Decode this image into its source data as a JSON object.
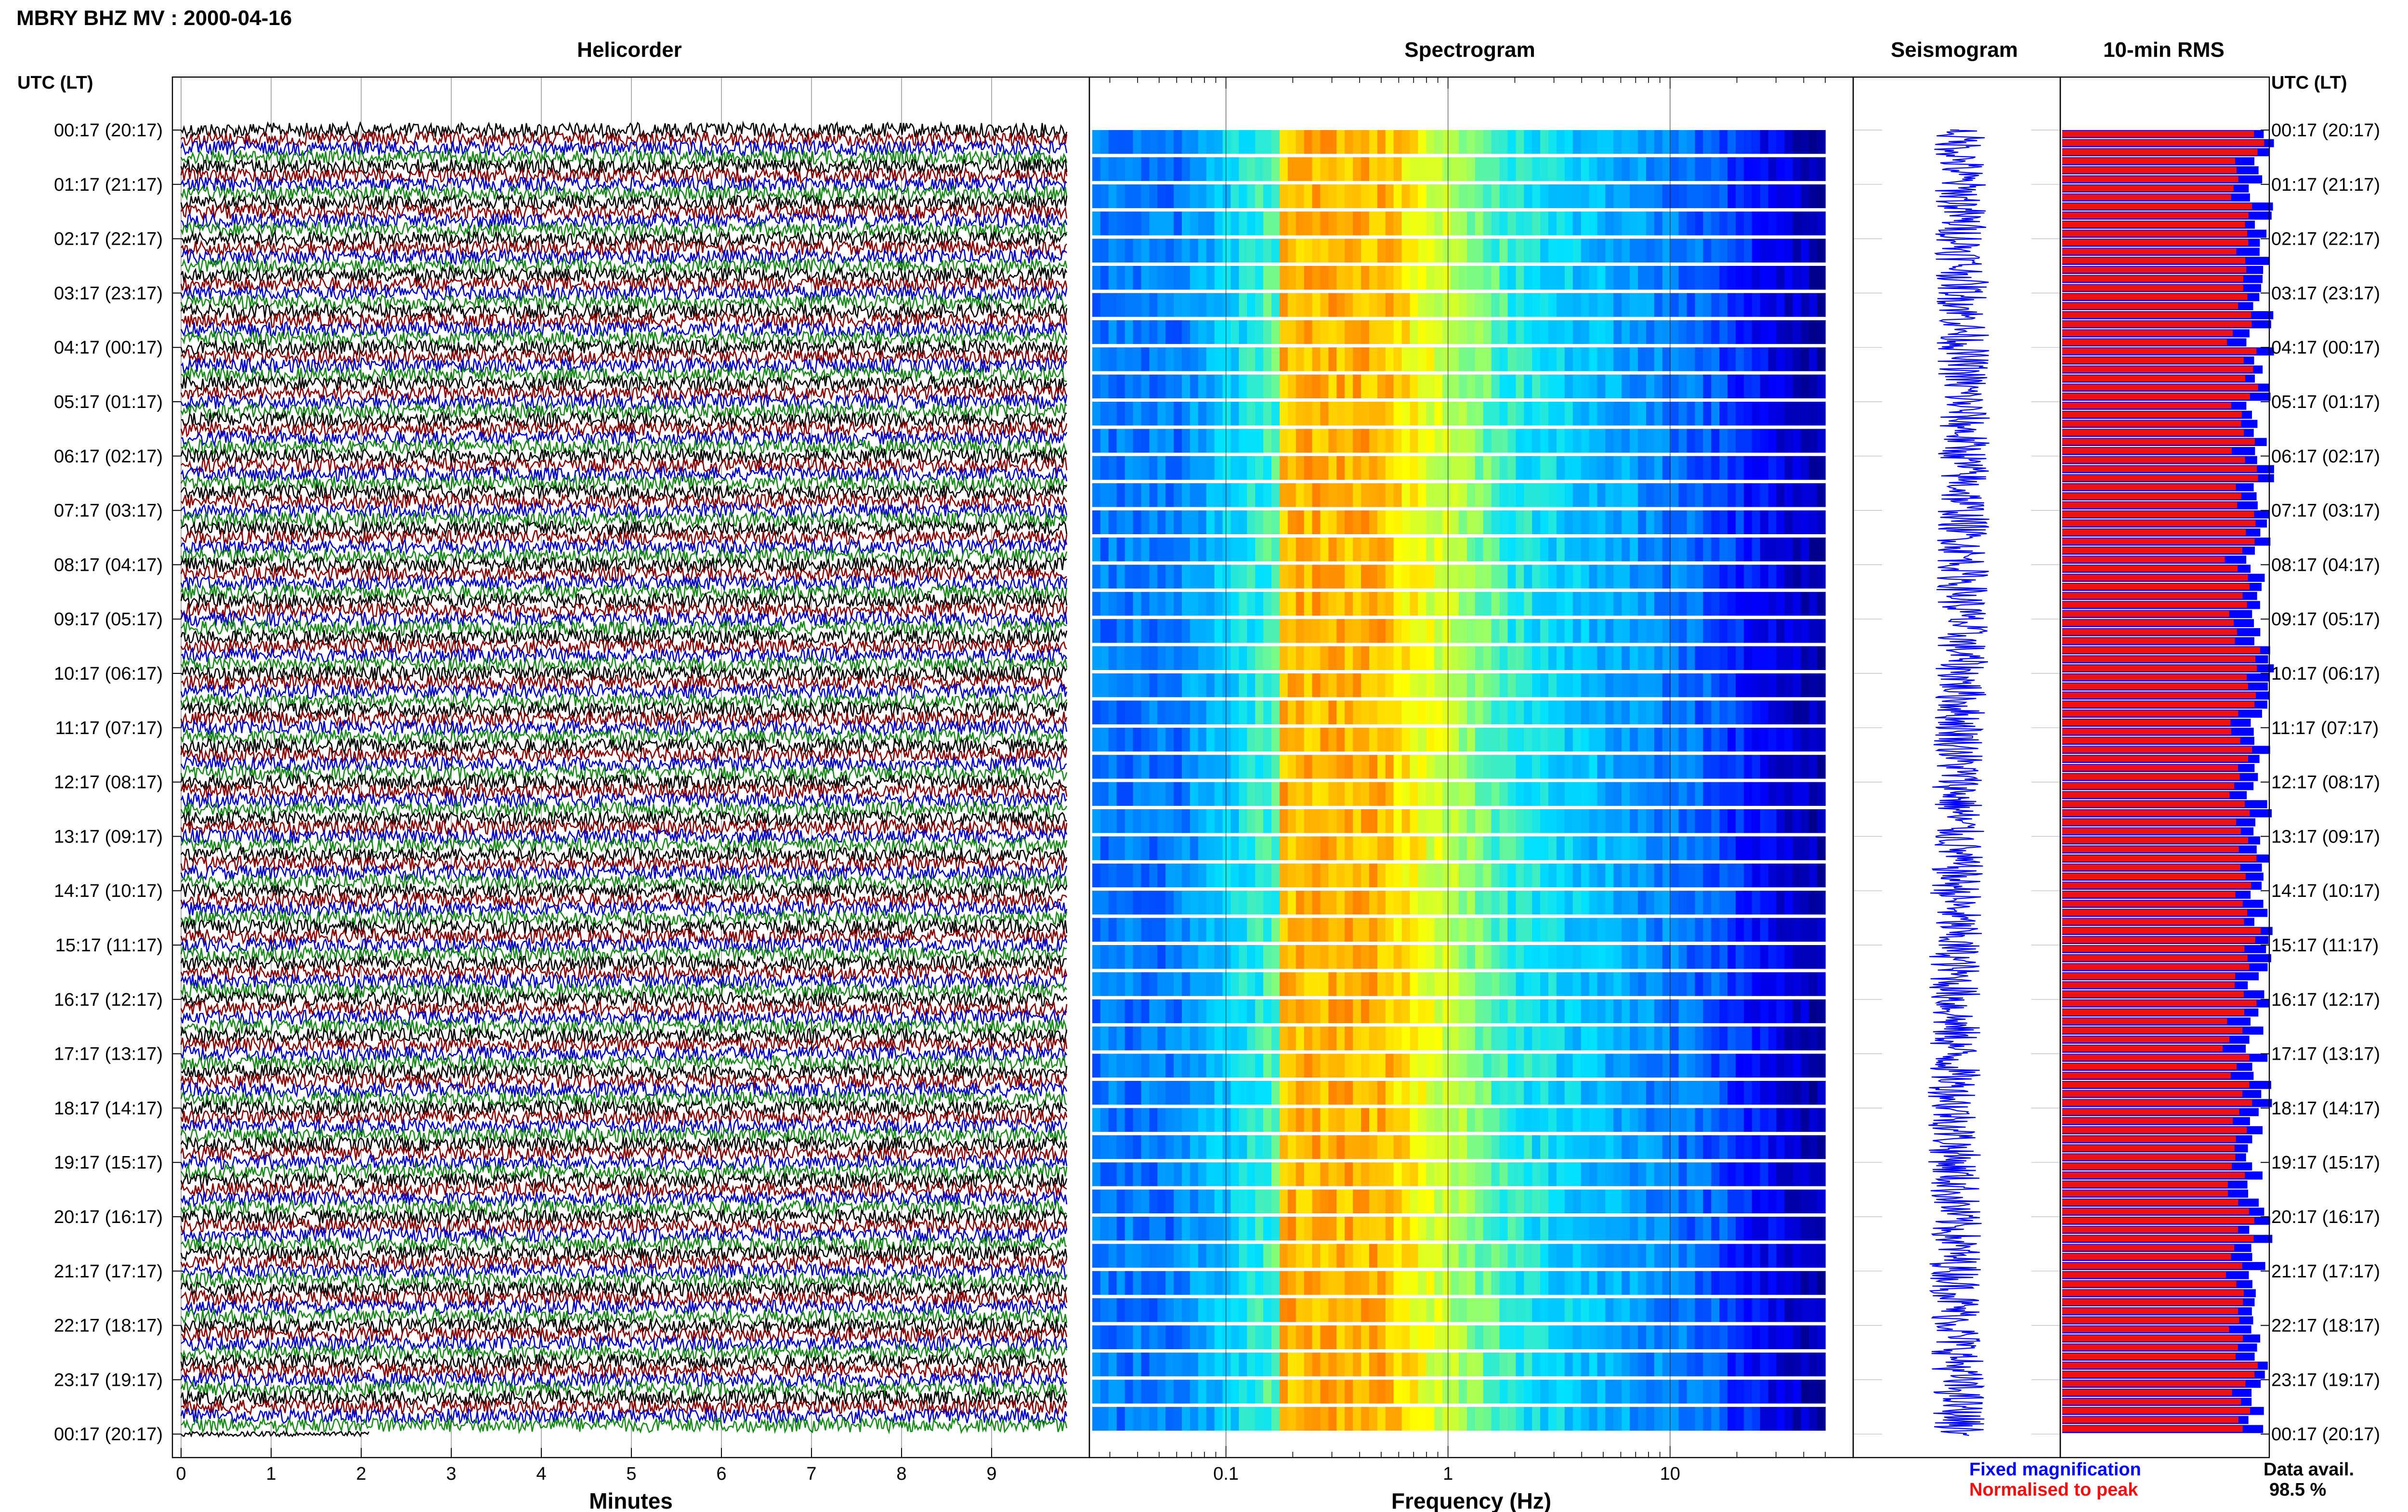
{
  "figure_title": "MBRY BHZ MV : 2000-04-16",
  "time_axis": {
    "header_left": "UTC (LT)",
    "header_right": "UTC (LT)",
    "row_labels": [
      "00:17 (20:17)",
      "01:17 (21:17)",
      "02:17 (22:17)",
      "03:17 (23:17)",
      "04:17 (00:17)",
      "05:17 (01:17)",
      "06:17 (02:17)",
      "07:17 (03:17)",
      "08:17 (04:17)",
      "09:17 (05:17)",
      "10:17 (06:17)",
      "11:17 (07:17)",
      "12:17 (08:17)",
      "13:17 (09:17)",
      "14:17 (10:17)",
      "15:17 (11:17)",
      "16:17 (12:17)",
      "17:17 (13:17)",
      "18:17 (14:17)",
      "19:17 (15:17)",
      "20:17 (16:17)",
      "21:17 (17:17)",
      "22:17 (18:17)",
      "23:17 (19:17)",
      "00:17 (20:17)"
    ]
  },
  "chart_data": [
    {
      "type": "line",
      "title": "Helicorder",
      "xlabel": "Minutes",
      "x_ticks": [
        "0",
        "1",
        "2",
        "3",
        "4",
        "5",
        "6",
        "7",
        "8",
        "9"
      ],
      "xlim": [
        0,
        10
      ],
      "lines_per_hour": 6,
      "trace_colors": [
        "#000000",
        "#8b0000",
        "#0000c8",
        "#1a8a1a"
      ],
      "last_line_length_minutes": 2.1
    },
    {
      "type": "heatmap",
      "title": "Spectrogram",
      "xlabel": "Frequency (Hz)",
      "x_scale": "log",
      "x_ticks": [
        "0.1",
        "1",
        "10"
      ],
      "xlim": [
        0.025,
        50
      ],
      "peak_band_hz": [
        0.18,
        0.5
      ],
      "colormap": [
        "#00008b",
        "#0000ff",
        "#0080ff",
        "#00e0ff",
        "#90ff70",
        "#ffff00",
        "#ff8000",
        "#e00000"
      ]
    },
    {
      "type": "line",
      "title": "Seismogram",
      "color": "#0000ff"
    },
    {
      "type": "bar",
      "title": "10-min RMS",
      "orientation": "horizontal",
      "series_colors": {
        "fixed": "#0000ff",
        "normalised": "#ee1111"
      }
    }
  ],
  "legend": {
    "fixed_label": "Fixed magnification",
    "normalised_label": "Normalised to peak",
    "fixed_color": "#0000ff",
    "normalised_color": "#ee1111"
  },
  "data_availability": {
    "label": "Data avail.",
    "value": "98.5 %"
  }
}
